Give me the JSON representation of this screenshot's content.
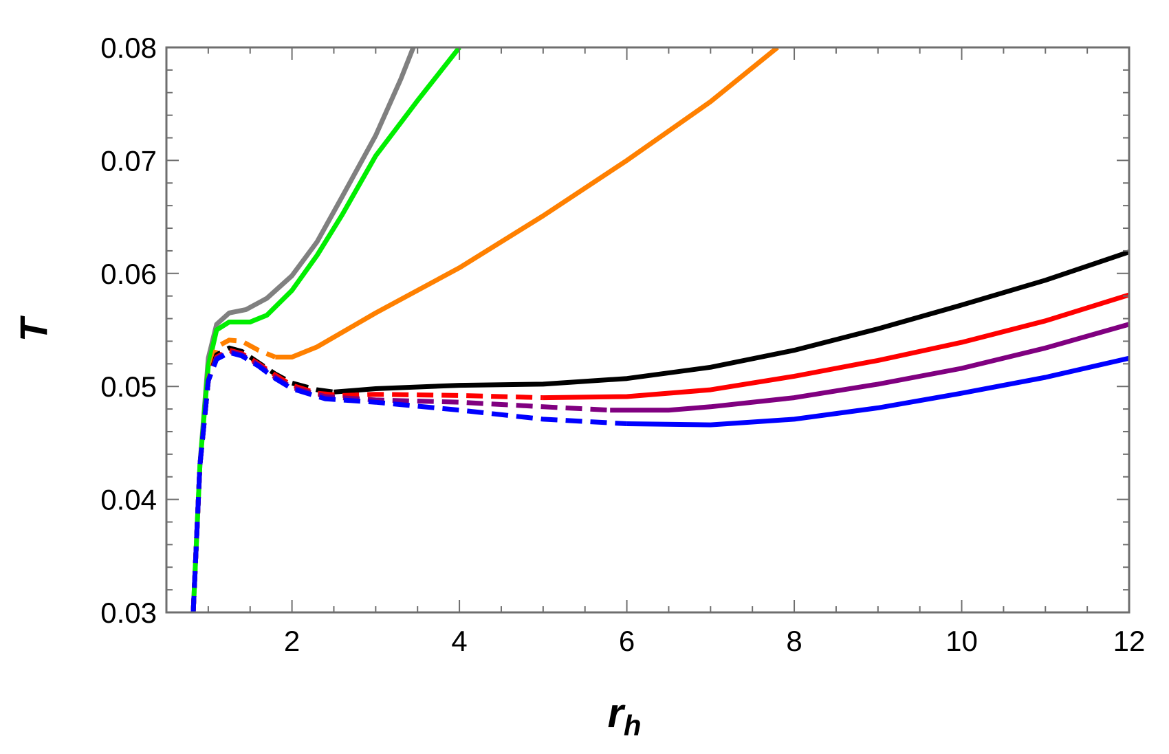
{
  "chart_data": {
    "type": "line",
    "title": "",
    "xlabel": "r",
    "xlabel_sub": "h",
    "ylabel": "T",
    "xlim": [
      0.5,
      12
    ],
    "ylim": [
      0.03,
      0.08
    ],
    "x_ticks": [
      2,
      4,
      6,
      8,
      10,
      12
    ],
    "y_ticks": [
      0.03,
      0.04,
      0.05,
      0.06,
      0.07,
      0.08
    ],
    "x_tick_labels": [
      "2",
      "4",
      "6",
      "8",
      "10",
      "12"
    ],
    "y_tick_labels": [
      "0.03",
      "0.04",
      "0.05",
      "0.06",
      "0.07",
      "0.08"
    ],
    "grid": false,
    "frame": true,
    "legend": "none",
    "series": [
      {
        "color": "#808080",
        "style": "solid",
        "points": [
          [
            0.82,
            0.03
          ],
          [
            0.9,
            0.043
          ],
          [
            1.0,
            0.0525
          ],
          [
            1.1,
            0.0555
          ],
          [
            1.25,
            0.0565
          ],
          [
            1.45,
            0.0568
          ],
          [
            1.7,
            0.0578
          ],
          [
            2.0,
            0.0598
          ],
          [
            2.3,
            0.0628
          ],
          [
            2.6,
            0.0668
          ],
          [
            3.0,
            0.0722
          ],
          [
            3.3,
            0.0772
          ],
          [
            3.45,
            0.08
          ]
        ]
      },
      {
        "color": "#00ee00",
        "style": "solid",
        "points": [
          [
            0.82,
            0.03
          ],
          [
            0.9,
            0.043
          ],
          [
            1.0,
            0.0518
          ],
          [
            1.1,
            0.055
          ],
          [
            1.25,
            0.0557
          ],
          [
            1.5,
            0.0557
          ],
          [
            1.7,
            0.0563
          ],
          [
            2.0,
            0.0585
          ],
          [
            2.3,
            0.0616
          ],
          [
            2.6,
            0.0652
          ],
          [
            3.0,
            0.0704
          ],
          [
            3.5,
            0.0753
          ],
          [
            4.0,
            0.08
          ]
        ]
      },
      {
        "color": "#ff8000",
        "style": "dashed",
        "points": [
          [
            0.82,
            0.03
          ],
          [
            0.9,
            0.043
          ],
          [
            1.0,
            0.0505
          ],
          [
            1.1,
            0.0535
          ],
          [
            1.25,
            0.0541
          ],
          [
            1.4,
            0.054
          ],
          [
            1.6,
            0.0532
          ],
          [
            1.8,
            0.0526
          ]
        ]
      },
      {
        "color": "#ff8000",
        "style": "solid",
        "points": [
          [
            1.8,
            0.0526
          ],
          [
            2.0,
            0.0526
          ],
          [
            2.3,
            0.0535
          ],
          [
            3.0,
            0.0565
          ],
          [
            4.0,
            0.0605
          ],
          [
            5.0,
            0.0651
          ],
          [
            6.0,
            0.07
          ],
          [
            7.0,
            0.0752
          ],
          [
            7.8,
            0.08
          ]
        ]
      },
      {
        "color": "#000000",
        "style": "dashed",
        "points": [
          [
            0.82,
            0.03
          ],
          [
            0.9,
            0.043
          ],
          [
            1.0,
            0.0505
          ],
          [
            1.1,
            0.0528
          ],
          [
            1.25,
            0.0534
          ],
          [
            1.4,
            0.0531
          ],
          [
            1.6,
            0.0521
          ],
          [
            1.8,
            0.0511
          ],
          [
            2.0,
            0.0503
          ],
          [
            2.3,
            0.0497
          ],
          [
            2.5,
            0.0495
          ]
        ]
      },
      {
        "color": "#000000",
        "style": "solid",
        "points": [
          [
            2.5,
            0.0495
          ],
          [
            3.0,
            0.0498
          ],
          [
            4.0,
            0.0501
          ],
          [
            5.0,
            0.0502
          ],
          [
            6.0,
            0.0507
          ],
          [
            7.0,
            0.0517
          ],
          [
            8.0,
            0.0532
          ],
          [
            9.0,
            0.0551
          ],
          [
            10.0,
            0.0572
          ],
          [
            11.0,
            0.0594
          ],
          [
            12.0,
            0.0619
          ]
        ]
      },
      {
        "color": "#ff0000",
        "style": "dashed",
        "points": [
          [
            0.82,
            0.03
          ],
          [
            0.9,
            0.043
          ],
          [
            1.0,
            0.0505
          ],
          [
            1.1,
            0.0526
          ],
          [
            1.25,
            0.0532
          ],
          [
            1.4,
            0.0529
          ],
          [
            1.6,
            0.052
          ],
          [
            1.8,
            0.051
          ],
          [
            2.0,
            0.0501
          ],
          [
            2.3,
            0.0494
          ],
          [
            2.6,
            0.0492
          ],
          [
            3.0,
            0.0493
          ],
          [
            4.0,
            0.0492
          ],
          [
            5.0,
            0.049
          ]
        ]
      },
      {
        "color": "#ff0000",
        "style": "solid",
        "points": [
          [
            5.0,
            0.049
          ],
          [
            6.0,
            0.0491
          ],
          [
            7.0,
            0.0497
          ],
          [
            8.0,
            0.0509
          ],
          [
            9.0,
            0.0523
          ],
          [
            10.0,
            0.0539
          ],
          [
            11.0,
            0.0558
          ],
          [
            12.0,
            0.0581
          ]
        ]
      },
      {
        "color": "#800080",
        "style": "dashed",
        "points": [
          [
            0.82,
            0.03
          ],
          [
            0.9,
            0.043
          ],
          [
            1.0,
            0.0505
          ],
          [
            1.1,
            0.0525
          ],
          [
            1.25,
            0.0531
          ],
          [
            1.4,
            0.0528
          ],
          [
            1.6,
            0.0519
          ],
          [
            1.8,
            0.0508
          ],
          [
            2.0,
            0.0499
          ],
          [
            2.4,
            0.0491
          ],
          [
            3.0,
            0.0488
          ],
          [
            4.0,
            0.0486
          ],
          [
            5.0,
            0.0482
          ],
          [
            5.8,
            0.0479
          ]
        ]
      },
      {
        "color": "#800080",
        "style": "solid",
        "points": [
          [
            5.8,
            0.0479
          ],
          [
            6.5,
            0.0479
          ],
          [
            7.0,
            0.0482
          ],
          [
            8.0,
            0.049
          ],
          [
            9.0,
            0.0502
          ],
          [
            10.0,
            0.0516
          ],
          [
            11.0,
            0.0534
          ],
          [
            12.0,
            0.0555
          ]
        ]
      },
      {
        "color": "#0000ff",
        "style": "dashed",
        "points": [
          [
            0.82,
            0.03
          ],
          [
            0.9,
            0.043
          ],
          [
            1.0,
            0.0505
          ],
          [
            1.1,
            0.0524
          ],
          [
            1.25,
            0.053
          ],
          [
            1.4,
            0.0527
          ],
          [
            1.6,
            0.0518
          ],
          [
            1.8,
            0.0507
          ],
          [
            2.0,
            0.0498
          ],
          [
            2.4,
            0.0489
          ],
          [
            3.0,
            0.0486
          ],
          [
            4.0,
            0.0479
          ],
          [
            5.0,
            0.0471
          ],
          [
            6.0,
            0.0467
          ]
        ]
      },
      {
        "color": "#0000ff",
        "style": "solid",
        "points": [
          [
            6.0,
            0.0467
          ],
          [
            7.0,
            0.0466
          ],
          [
            8.0,
            0.0471
          ],
          [
            9.0,
            0.0481
          ],
          [
            10.0,
            0.0494
          ],
          [
            11.0,
            0.0508
          ],
          [
            12.0,
            0.0525
          ]
        ]
      }
    ]
  }
}
